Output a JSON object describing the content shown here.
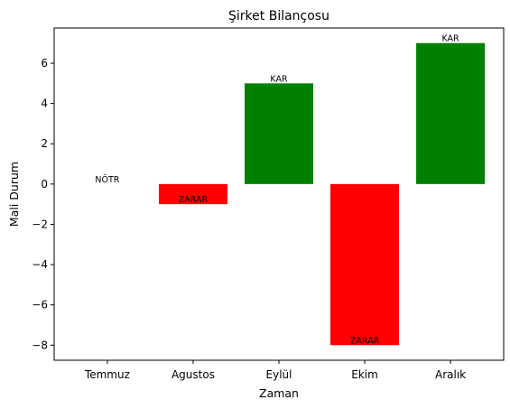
{
  "chart_data": {
    "type": "bar",
    "title": "Şirket Bilançosu",
    "xlabel": "Zaman",
    "ylabel": "Mali Durum",
    "categories": [
      "Temmuz",
      "Agustos",
      "Eylül",
      "Ekim",
      "Aralık"
    ],
    "values": [
      0,
      -1,
      5,
      -8,
      7
    ],
    "bar_labels": [
      "NÖTR",
      "ZARAR",
      "KAR",
      "ZARAR",
      "KAR"
    ],
    "bar_colors": [
      "#808080",
      "#ff0000",
      "#008000",
      "#ff0000",
      "#008000"
    ],
    "ylim": [
      -8.75,
      7.75
    ],
    "yticks": [
      -8,
      -6,
      -4,
      -2,
      0,
      2,
      4,
      6
    ],
    "ytick_labels": [
      "−8",
      "−6",
      "−4",
      "−2",
      "0",
      "2",
      "4",
      "6"
    ],
    "grid": false,
    "legend": "none"
  }
}
